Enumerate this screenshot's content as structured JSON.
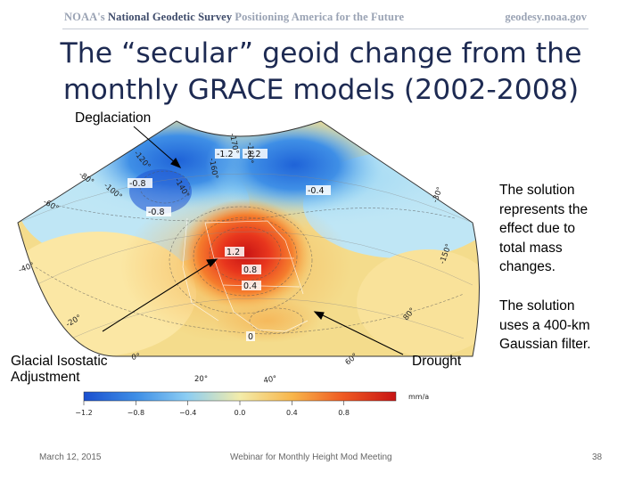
{
  "header": {
    "org_prefix": "NOAA's",
    "org_name": "National Geodetic Survey",
    "tagline": "Positioning America for the Future",
    "website": "geodesy.noaa.gov"
  },
  "slide": {
    "title_line1": "The “secular” geoid change from the",
    "title_line2": "monthly GRACE models (2002-2008)"
  },
  "annotations": {
    "deglaciation": "Deglaciation",
    "gia_line1": "Glacial Isostatic",
    "gia_line2": "Adjustment",
    "drought": "Drought"
  },
  "side_text": {
    "para1": [
      "The solution",
      "represents the",
      "effect due to",
      "total mass",
      "changes."
    ],
    "para2": [
      "The solution",
      "uses a 400-km",
      "Gaussian filter."
    ]
  },
  "map": {
    "contour_labels": [
      "1.2",
      "0.8",
      "0.4",
      "0",
      "-0.8",
      "-0.4",
      "-0.8",
      "-1.2",
      "-1.2"
    ],
    "longitude_labels": [
      "-180°",
      "-170°",
      "-160°",
      "-140°",
      "-120°",
      "-100°",
      "-80°",
      "-60°",
      "-40°",
      "-20°",
      "0°",
      "20°",
      "40°",
      "60°",
      "80°",
      "-150°",
      "-30°"
    ],
    "colorbar": {
      "unit": "mm/a",
      "ticks": [
        "−1.2",
        "−0.8",
        "−0.4",
        "0.0",
        "0.4",
        "0.8"
      ],
      "colors": [
        "#1a4fcf",
        "#3f8fe6",
        "#8ccdf3",
        "#f3ecaa",
        "#f8b54a",
        "#ef5a22",
        "#c81414"
      ]
    }
  },
  "footer": {
    "date": "March 12, 2015",
    "event": "Webinar for Monthly Height Mod Meeting",
    "page": "38"
  }
}
